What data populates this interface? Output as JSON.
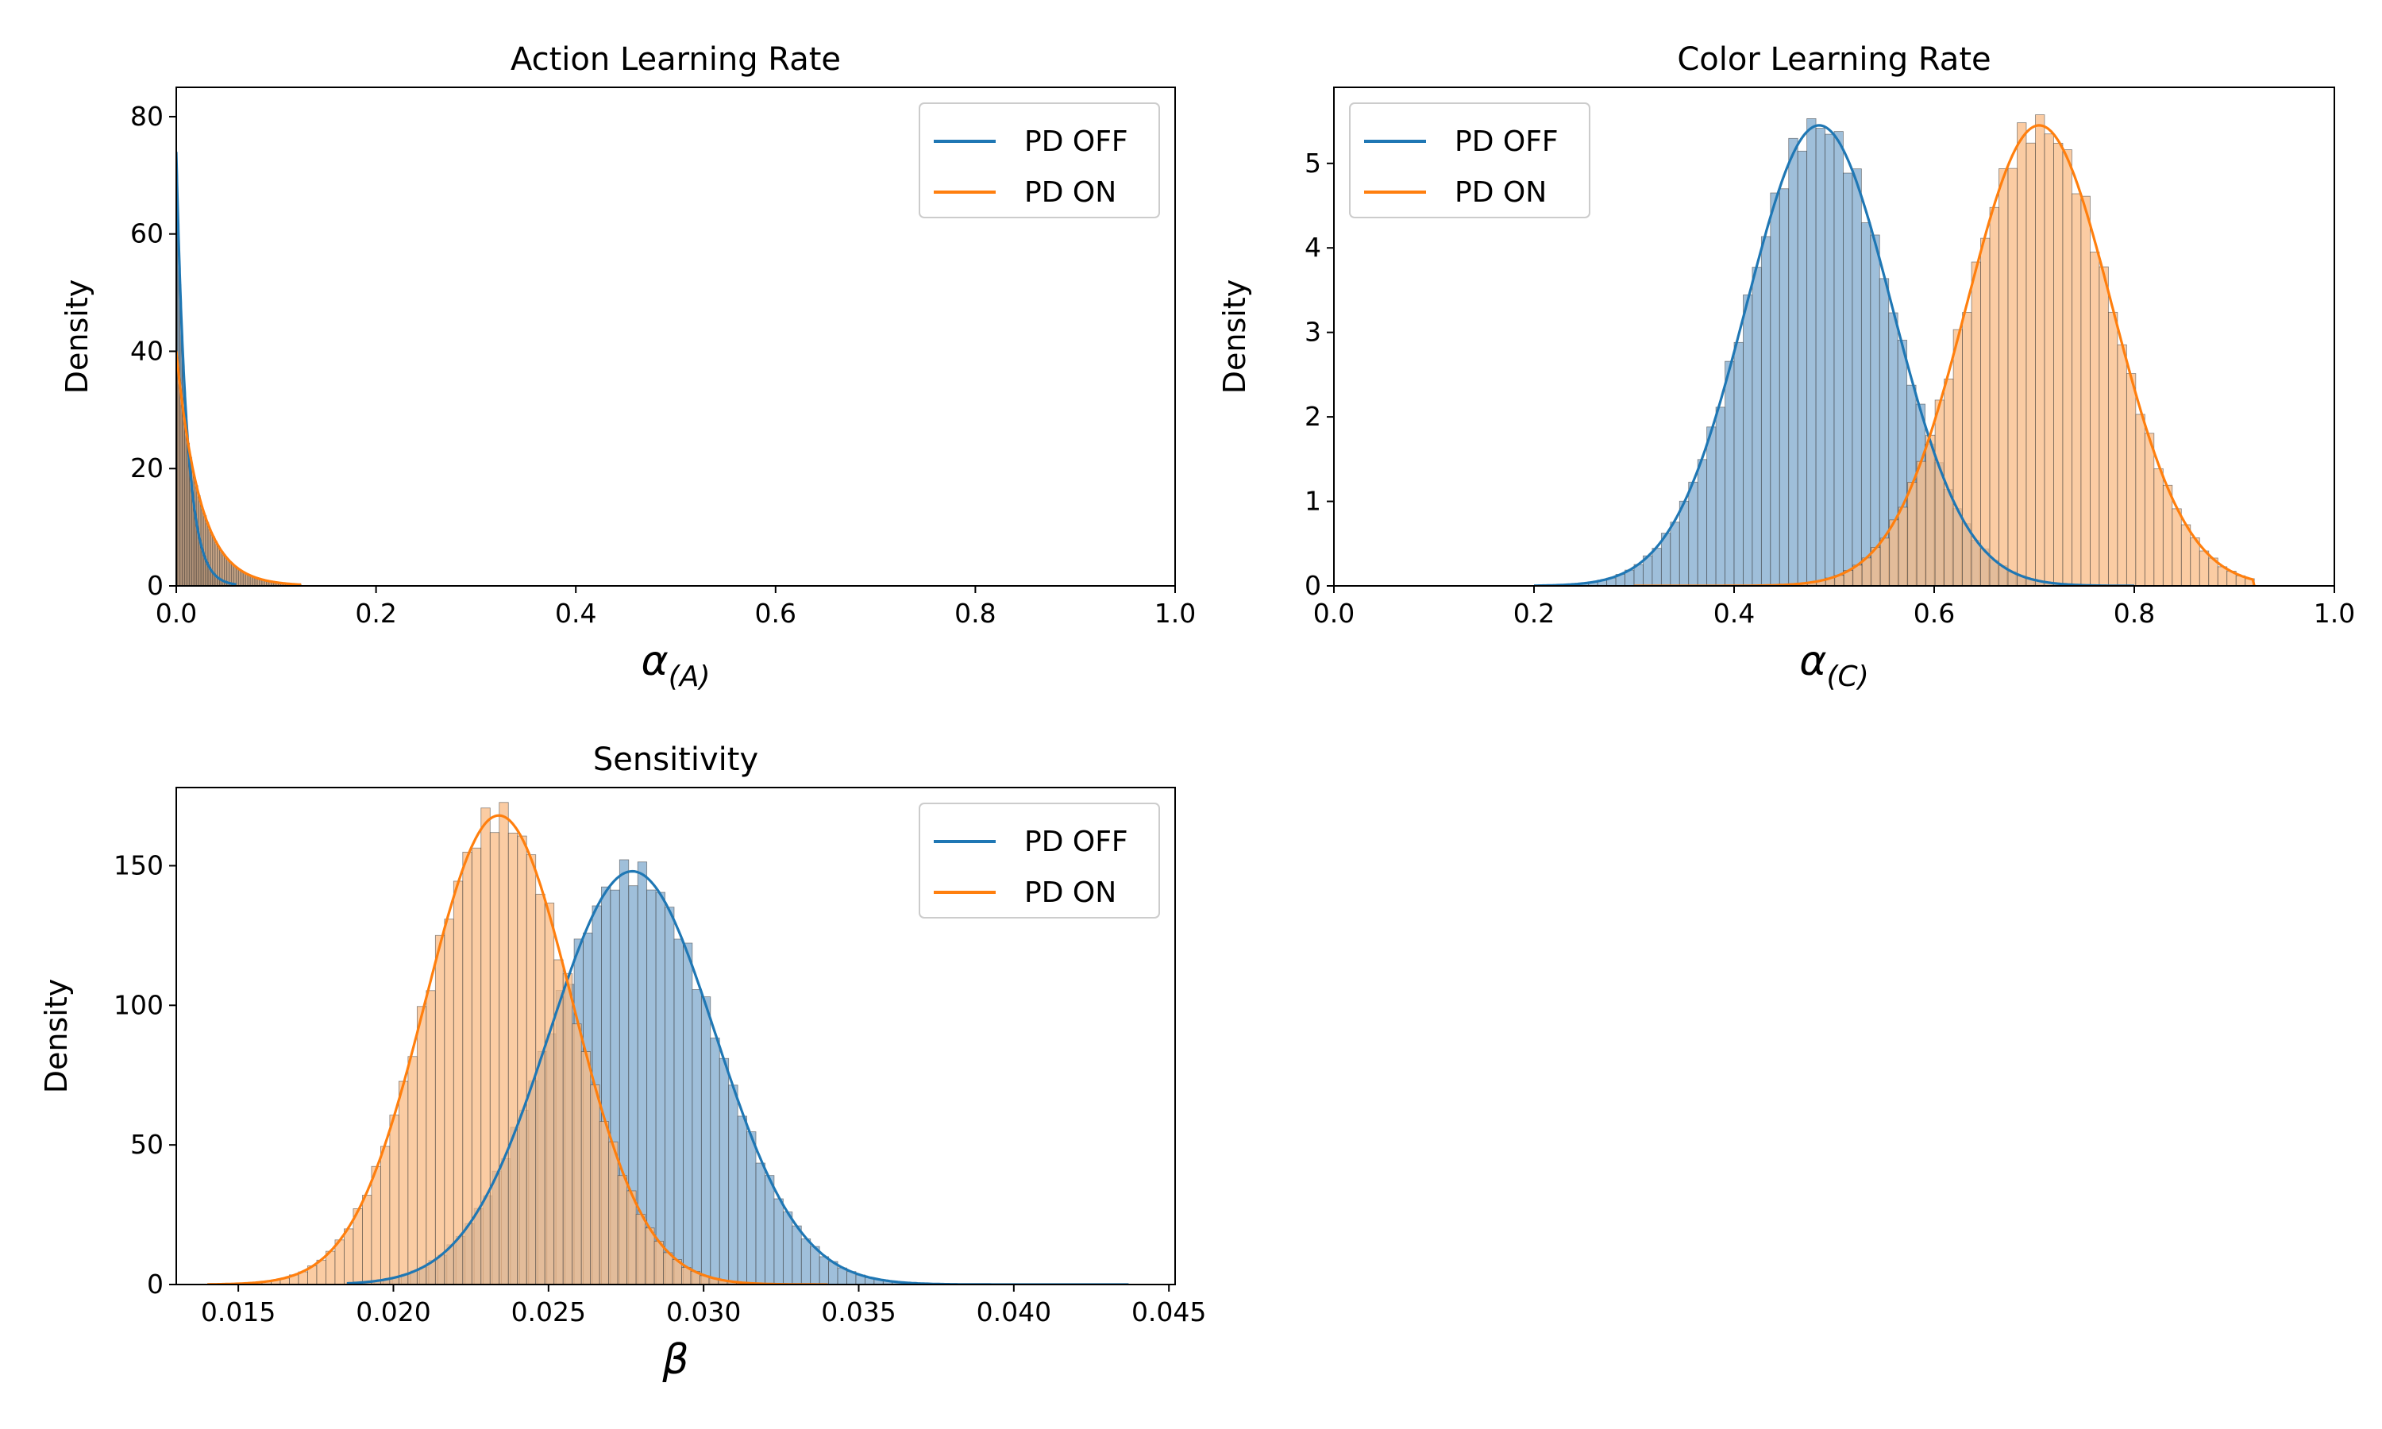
{
  "colors": {
    "off": "#1f77b4",
    "on": "#ff7f0e",
    "off_fill": "#7fa9cd",
    "on_fill": "#f9bb84",
    "overlap_fill": "#8f6f4c",
    "bar_edge": "#3a3a3a"
  },
  "chart_data": [
    {
      "type": "area",
      "subtype": "histogram+kde",
      "title": "Action Learning Rate",
      "xlabel": "α",
      "xlabel_sub": "(A)",
      "ylabel": "Density",
      "xlim": [
        0.0,
        1.0
      ],
      "ylim": [
        0,
        85
      ],
      "xticks": [
        "0.0",
        "0.2",
        "0.4",
        "0.6",
        "0.8",
        "1.0"
      ],
      "yticks": [
        "0",
        "20",
        "40",
        "60",
        "80"
      ],
      "grid": false,
      "legend_position": "upper right",
      "series": [
        {
          "name": "PD OFF",
          "color_key": "off",
          "dist": "exponential",
          "peak_density": 74,
          "rate": 95,
          "min": 0.0,
          "max": 0.06
        },
        {
          "name": "PD ON",
          "color_key": "on",
          "dist": "exponential",
          "peak_density": 40,
          "rate": 42,
          "min": 0.0,
          "max": 0.125
        }
      ]
    },
    {
      "type": "area",
      "subtype": "histogram+kde",
      "title": "Color Learning Rate",
      "xlabel": "α",
      "xlabel_sub": "(C)",
      "ylabel": "Density",
      "xlim": [
        0.0,
        1.0
      ],
      "ylim": [
        0,
        5.9
      ],
      "xticks": [
        "0.0",
        "0.2",
        "0.4",
        "0.6",
        "0.8",
        "1.0"
      ],
      "yticks": [
        "0",
        "1",
        "2",
        "3",
        "4",
        "5"
      ],
      "grid": false,
      "legend_position": "upper left",
      "series": [
        {
          "name": "PD OFF",
          "color_key": "off",
          "dist": "normal",
          "mean": 0.485,
          "sd": 0.073,
          "peak_density": 5.45,
          "min": 0.2,
          "max": 0.8
        },
        {
          "name": "PD ON",
          "color_key": "on",
          "dist": "normal",
          "mean": 0.705,
          "sd": 0.073,
          "peak_density": 5.45,
          "min": 0.3,
          "max": 0.92
        }
      ]
    },
    {
      "type": "area",
      "subtype": "histogram+kde",
      "title": "Sensitivity",
      "xlabel": "β",
      "xlabel_sub": "",
      "ylabel": "Density",
      "xlim": [
        0.013,
        0.0452
      ],
      "ylim": [
        0,
        178
      ],
      "xticks": [
        "0.015",
        "0.020",
        "0.025",
        "0.030",
        "0.035",
        "0.040",
        "0.045"
      ],
      "yticks": [
        "0",
        "50",
        "100",
        "150"
      ],
      "grid": false,
      "legend_position": "upper right",
      "series": [
        {
          "name": "PD OFF",
          "color_key": "off",
          "dist": "normal",
          "mean": 0.0277,
          "sd": 0.00268,
          "peak_density": 148,
          "min": 0.0185,
          "max": 0.0437
        },
        {
          "name": "PD ON",
          "color_key": "on",
          "dist": "normal",
          "mean": 0.0234,
          "sd": 0.00236,
          "peak_density": 168,
          "min": 0.014,
          "max": 0.034
        }
      ]
    }
  ]
}
